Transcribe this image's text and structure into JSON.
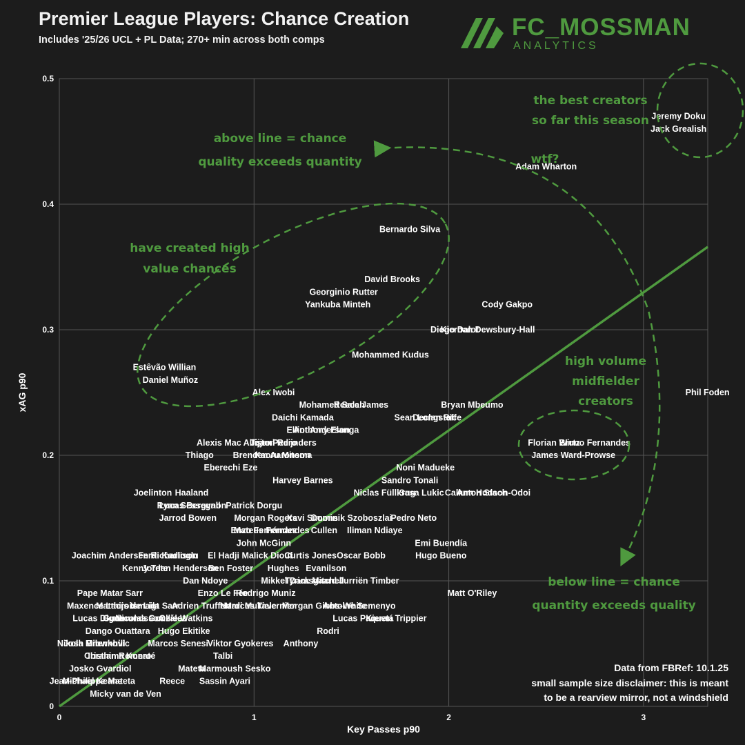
{
  "header": {
    "title": "Premier League Players: Chance Creation",
    "subtitle": "Includes '25/26 UCL + PL Data; 270+ min across both comps",
    "brand_name": "FC_MOSSMAN",
    "brand_sub": "ANALYTICS"
  },
  "colors": {
    "background": "#1c1c1c",
    "accent": "#4f9a3f",
    "grid": "#555555",
    "text": "#ffffff"
  },
  "annotations": {
    "best_line1": "the best creators",
    "best_line2": "so far this season",
    "above_line1": "above line = chance",
    "above_line2": "quality exceeds quantity",
    "wtf": "wtf?",
    "high_value_line1": "have created high",
    "high_value_line2": "value chances",
    "volume_line1": "high volume",
    "volume_line2": "midfielder",
    "volume_line3": "creators",
    "below_line1": "below line = chance",
    "below_line2": "quantity exceeds quality"
  },
  "source": {
    "line1": "Data from FBRef: 10.1.25",
    "line2": "small sample size disclaimer: this is meant",
    "line3": "to be a rearview mirror, not a windshield"
  },
  "chart_data": {
    "type": "scatter",
    "xlabel": "Key Passes p90",
    "ylabel": "xAG p90",
    "xlim": [
      0,
      3.33
    ],
    "ylim": [
      0,
      0.5
    ],
    "xticks": [
      "0",
      "1",
      "2",
      "3"
    ],
    "yticks": [
      "0",
      "0.1",
      "0.2",
      "0.3",
      "0.4",
      "0.5"
    ],
    "grid": true,
    "reference_line": [
      [
        0,
        0
      ],
      [
        3.33,
        0.366
      ]
    ],
    "points": [
      {
        "name": "Jeremy Doku",
        "x": 3.18,
        "y": 0.47
      },
      {
        "name": "Jack Grealish",
        "x": 3.18,
        "y": 0.46
      },
      {
        "name": "Adam Wharton",
        "x": 2.5,
        "y": 0.43
      },
      {
        "name": "Phil Foden",
        "x": 3.3,
        "y": 0.25
      },
      {
        "name": "Bernardo Silva",
        "x": 1.8,
        "y": 0.38
      },
      {
        "name": "David Brooks",
        "x": 1.71,
        "y": 0.34
      },
      {
        "name": "Georginio Rutter",
        "x": 1.46,
        "y": 0.33
      },
      {
        "name": "Yankuba Minteh",
        "x": 1.43,
        "y": 0.32
      },
      {
        "name": "Cody Gakpo",
        "x": 2.3,
        "y": 0.32
      },
      {
        "name": "Kiernan Dewsbury-Hall",
        "x": 2.2,
        "y": 0.3
      },
      {
        "name": "Diogo Dalot",
        "x": 2.03,
        "y": 0.3
      },
      {
        "name": "Mohammed Kudus",
        "x": 1.7,
        "y": 0.28
      },
      {
        "name": "Estêvão Willian",
        "x": 0.54,
        "y": 0.27
      },
      {
        "name": "Daniel Muñoz",
        "x": 0.57,
        "y": 0.26
      },
      {
        "name": "Alex Iwobi",
        "x": 1.1,
        "y": 0.25
      },
      {
        "name": "Mohamed Salah",
        "x": 1.4,
        "y": 0.24
      },
      {
        "name": "Reece James",
        "x": 1.55,
        "y": 0.24
      },
      {
        "name": "Bryan Mbeumo",
        "x": 2.12,
        "y": 0.24
      },
      {
        "name": "Sean Longstaff",
        "x": 1.88,
        "y": 0.23
      },
      {
        "name": "Declan Rice",
        "x": 1.94,
        "y": 0.23
      },
      {
        "name": "Daichi Kamada",
        "x": 1.25,
        "y": 0.23
      },
      {
        "name": "Anthony Elanga",
        "x": 1.37,
        "y": 0.22
      },
      {
        "name": "Elliot Anderson",
        "x": 1.33,
        "y": 0.22
      },
      {
        "name": "Bruno Fernandes",
        "x": 2.75,
        "y": 0.21
      },
      {
        "name": "Florian Wirtz",
        "x": 2.54,
        "y": 0.21
      },
      {
        "name": "James Ward-Prowse",
        "x": 2.64,
        "y": 0.2
      },
      {
        "name": "Tijjani Reijnders",
        "x": 1.15,
        "y": 0.21
      },
      {
        "name": "Alexis Mac Allister",
        "x": 0.9,
        "y": 0.21
      },
      {
        "name": "Joao Pedro",
        "x": 1.1,
        "y": 0.21
      },
      {
        "name": "Thiago",
        "x": 0.72,
        "y": 0.2
      },
      {
        "name": "Kaoru Mitoma",
        "x": 1.15,
        "y": 0.2
      },
      {
        "name": "Brenden Aaronson",
        "x": 1.09,
        "y": 0.2
      },
      {
        "name": "Eberechi Eze",
        "x": 0.88,
        "y": 0.19
      },
      {
        "name": "Noni Madueke",
        "x": 1.88,
        "y": 0.19
      },
      {
        "name": "Harvey Barnes",
        "x": 1.25,
        "y": 0.18
      },
      {
        "name": "Sandro Tonali",
        "x": 1.8,
        "y": 0.18
      },
      {
        "name": "Niclas Füllkrug",
        "x": 1.67,
        "y": 0.17
      },
      {
        "name": "Sasa Lukic",
        "x": 1.86,
        "y": 0.17
      },
      {
        "name": "Callum Hudson-Odoi",
        "x": 2.2,
        "y": 0.17
      },
      {
        "name": "Anton Stach",
        "x": 2.17,
        "y": 0.17
      },
      {
        "name": "Joelinton",
        "x": 0.48,
        "y": 0.17
      },
      {
        "name": "Haaland",
        "x": 0.68,
        "y": 0.17
      },
      {
        "name": "Ryan Sessegnon",
        "x": 0.68,
        "y": 0.16
      },
      {
        "name": "Patrick Dorgu",
        "x": 1.0,
        "y": 0.16
      },
      {
        "name": "Lucas Bergvall",
        "x": 0.67,
        "y": 0.16
      },
      {
        "name": "Xavi Simons",
        "x": 1.3,
        "y": 0.15
      },
      {
        "name": "Jarrod Bowen",
        "x": 0.66,
        "y": 0.15
      },
      {
        "name": "Morgan Rogers",
        "x": 1.06,
        "y": 0.15
      },
      {
        "name": "Dominik Szoboszlai",
        "x": 1.5,
        "y": 0.15
      },
      {
        "name": "Pedro Neto",
        "x": 1.82,
        "y": 0.15
      },
      {
        "name": "Mateus Fernandes",
        "x": 1.09,
        "y": 0.14
      },
      {
        "name": "Iliman Ndiaye",
        "x": 1.62,
        "y": 0.14
      },
      {
        "name": "Enzo Fernández",
        "x": 1.05,
        "y": 0.14
      },
      {
        "name": "Cullen",
        "x": 1.36,
        "y": 0.14
      },
      {
        "name": "John McGinn",
        "x": 1.05,
        "y": 0.13
      },
      {
        "name": "Emi Buendía",
        "x": 1.96,
        "y": 0.13
      },
      {
        "name": "Curtis Jones",
        "x": 1.29,
        "y": 0.12
      },
      {
        "name": "Oscar Bobb",
        "x": 1.55,
        "y": 0.12
      },
      {
        "name": "Hugo Bueno",
        "x": 1.96,
        "y": 0.12
      },
      {
        "name": "Ferdi Kadioglu",
        "x": 0.56,
        "y": 0.12
      },
      {
        "name": "Richarlison",
        "x": 0.59,
        "y": 0.12
      },
      {
        "name": "Joachim Andersen",
        "x": 0.26,
        "y": 0.12
      },
      {
        "name": "El Hadji Malick Diouf",
        "x": 0.98,
        "y": 0.12
      },
      {
        "name": "Evanilson",
        "x": 1.37,
        "y": 0.11
      },
      {
        "name": "Kenny Tete",
        "x": 0.44,
        "y": 0.11
      },
      {
        "name": "Jordan Henderson",
        "x": 0.62,
        "y": 0.11
      },
      {
        "name": "Ben Foster",
        "x": 0.88,
        "y": 0.11
      },
      {
        "name": "Hughes",
        "x": 1.15,
        "y": 0.11
      },
      {
        "name": "Dan Ndoye",
        "x": 0.75,
        "y": 0.1
      },
      {
        "name": "Mikkel Damsgaard",
        "x": 1.23,
        "y": 0.1
      },
      {
        "name": "Jurriën Timber",
        "x": 1.59,
        "y": 0.1
      },
      {
        "name": "Tyrick Mitchell",
        "x": 1.31,
        "y": 0.1
      },
      {
        "name": "Enzo Le Fée",
        "x": 0.84,
        "y": 0.09
      },
      {
        "name": "Pape Matar Sarr",
        "x": 0.26,
        "y": 0.09
      },
      {
        "name": "Matt O'Riley",
        "x": 2.12,
        "y": 0.09
      },
      {
        "name": "Rodrigo Muniz",
        "x": 1.06,
        "y": 0.09
      },
      {
        "name": "Maxence Lacroix",
        "x": 0.11,
        "y": 0.08
      },
      {
        "name": "Matthijs de Ligt",
        "x": 0.35,
        "y": 0.08
      },
      {
        "name": "Adrien Truffert",
        "x": 0.73,
        "y": 0.08
      },
      {
        "name": "Marcus Tavernier",
        "x": 1.03,
        "y": 0.08
      },
      {
        "name": "Antoine Semenyo",
        "x": 1.54,
        "y": 0.08
      },
      {
        "name": "Ismaila Sarr",
        "x": 0.49,
        "y": 0.08
      },
      {
        "name": "Nordi Mukiele",
        "x": 0.97,
        "y": 0.08
      },
      {
        "name": "Morgan Gibbs-White",
        "x": 1.36,
        "y": 0.08
      },
      {
        "name": "Lucas Paquetá",
        "x": 1.56,
        "y": 0.07
      },
      {
        "name": "Kieran Trippier",
        "x": 1.73,
        "y": 0.07
      },
      {
        "name": "Lucas Digne",
        "x": 0.2,
        "y": 0.07
      },
      {
        "name": "Gudmundsson",
        "x": 0.38,
        "y": 0.07
      },
      {
        "name": "Ollie Watkins",
        "x": 0.65,
        "y": 0.07
      },
      {
        "name": "Nicolas González",
        "x": 0.47,
        "y": 0.07
      },
      {
        "name": "Dango Ouattara",
        "x": 0.3,
        "y": 0.06
      },
      {
        "name": "Hugo Ekitike",
        "x": 0.64,
        "y": 0.06
      },
      {
        "name": "Rodri",
        "x": 1.38,
        "y": 0.06
      },
      {
        "name": "Nikola Milenkovic",
        "x": 0.06,
        "y": 0.05
      },
      {
        "name": "Josh Brownhill",
        "x": 0.18,
        "y": 0.05
      },
      {
        "name": "Marcos Senesi",
        "x": 0.61,
        "y": 0.05
      },
      {
        "name": "Viktor Gyokeres",
        "x": 0.93,
        "y": 0.05
      },
      {
        "name": "Anthony",
        "x": 1.24,
        "y": 0.05
      },
      {
        "name": "Cristian Romero",
        "x": 0.3,
        "y": 0.04
      },
      {
        "name": "Ibrahima Konaté",
        "x": 0.32,
        "y": 0.04
      },
      {
        "name": "Talbi",
        "x": 0.84,
        "y": 0.04
      },
      {
        "name": "Sesko",
        "x": 1.02,
        "y": 0.03
      },
      {
        "name": "Josko Gvardiol",
        "x": 0.21,
        "y": 0.03
      },
      {
        "name": "Mateta",
        "x": 0.68,
        "y": 0.03
      },
      {
        "name": "Marmoush",
        "x": 0.83,
        "y": 0.03
      },
      {
        "name": "Sassin Ayari",
        "x": 0.85,
        "y": 0.02
      },
      {
        "name": "Jean-Philippe Mateta",
        "x": 0.02,
        "y": 0.02
      },
      {
        "name": "Michael Keane",
        "x": 0.17,
        "y": 0.02
      },
      {
        "name": "Micky van de Ven",
        "x": 0.34,
        "y": 0.01
      },
      {
        "name": "Reece",
        "x": 0.58,
        "y": 0.02
      }
    ]
  }
}
